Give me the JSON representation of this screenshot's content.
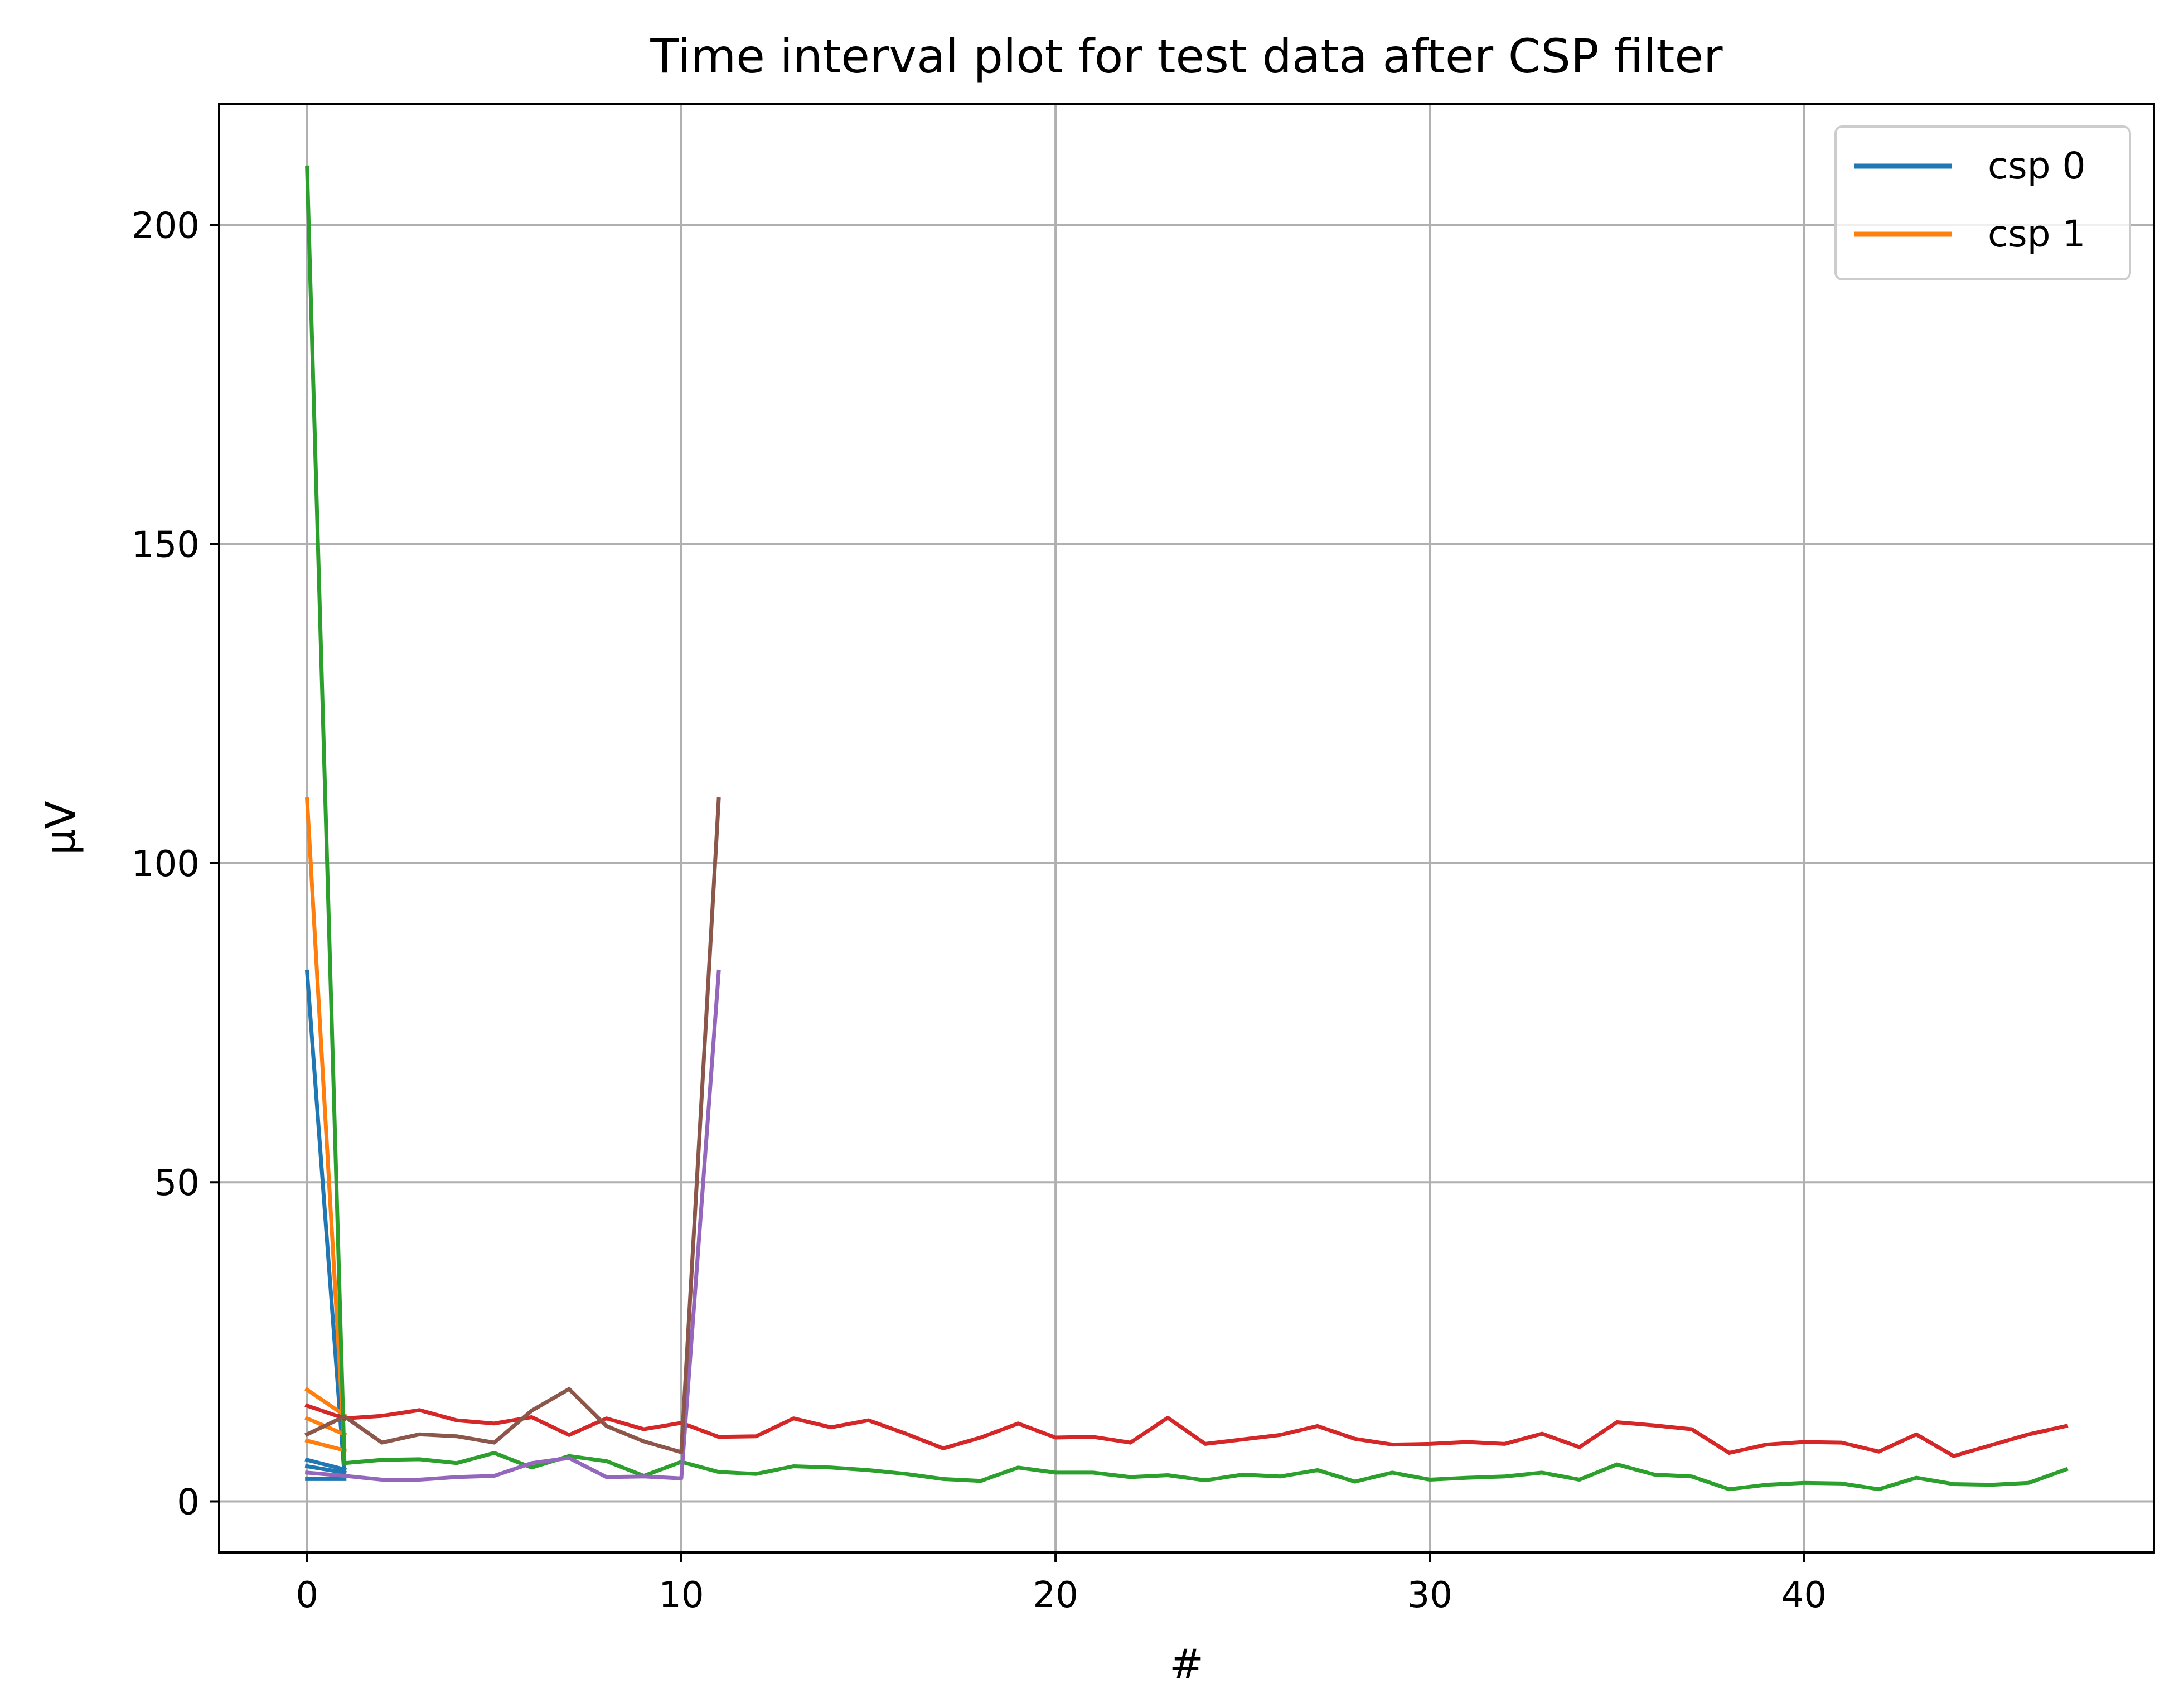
{
  "chart_data": {
    "type": "line",
    "title": "Time interval plot for test data after CSP filter",
    "xlabel": "#",
    "ylabel": "μV",
    "xlim": [
      -2.35,
      49.35
    ],
    "ylim": [
      -8.0,
      219.0
    ],
    "xticks": [
      0,
      10,
      20,
      30,
      40
    ],
    "yticks": [
      0,
      50,
      100,
      150,
      200
    ],
    "grid": true,
    "legend": {
      "placement": "top-right",
      "entries": [
        {
          "label": "csp 0",
          "color": "#1f77b4"
        },
        {
          "label": "csp 1",
          "color": "#ff7f0e"
        }
      ]
    },
    "series": [
      {
        "color": "#1f77b4",
        "x": [
          0,
          1
        ],
        "y": [
          83,
          4
        ]
      },
      {
        "color": "#1f77b4",
        "x": [
          0,
          1
        ],
        "y": [
          6.5,
          5
        ]
      },
      {
        "color": "#1f77b4",
        "x": [
          0,
          1
        ],
        "y": [
          3.5,
          3.5
        ]
      },
      {
        "color": "#1f77b4",
        "x": [
          0,
          1
        ],
        "y": [
          5.5,
          4.5
        ]
      },
      {
        "color": "#ff7f0e",
        "x": [
          0,
          1
        ],
        "y": [
          110,
          8
        ]
      },
      {
        "color": "#ff7f0e",
        "x": [
          0,
          1
        ],
        "y": [
          17.5,
          13.5
        ]
      },
      {
        "color": "#ff7f0e",
        "x": [
          0,
          1
        ],
        "y": [
          13,
          10.5
        ]
      },
      {
        "color": "#ff7f0e",
        "x": [
          0,
          1
        ],
        "y": [
          9.5,
          8
        ]
      },
      {
        "color": "#2ca02c",
        "x": [
          0,
          1
        ],
        "y": [
          209,
          6
        ]
      },
      {
        "color": "#2ca02c",
        "x": [
          1,
          2,
          3,
          4,
          5,
          6,
          7,
          8,
          9,
          10,
          11,
          12,
          13,
          14,
          15,
          16,
          17,
          18,
          19,
          20,
          21,
          22,
          23,
          24,
          25,
          26,
          27,
          28,
          29,
          30,
          31,
          32,
          33,
          34,
          35,
          36,
          37,
          38,
          39,
          40,
          41,
          42,
          43,
          44,
          45,
          46,
          47
        ],
        "y": [
          6,
          6.5,
          6.6,
          6,
          7.6,
          5.3,
          7.1,
          6.3,
          4,
          6.2,
          4.6,
          4.3,
          5.5,
          5.3,
          4.9,
          4.3,
          3.5,
          3.2,
          5.3,
          4.5,
          4.5,
          3.8,
          4.1,
          3.3,
          4.2,
          3.9,
          4.9,
          3.1,
          4.5,
          3.4,
          3.7,
          3.9,
          4.5,
          3.4,
          5.8,
          4.2,
          3.9,
          1.9,
          2.6,
          2.9,
          2.8,
          1.9,
          3.7,
          2.7,
          2.6,
          2.9,
          5
        ]
      },
      {
        "color": "#d62728",
        "x": [
          0,
          1
        ],
        "y": [
          15,
          13
        ]
      },
      {
        "color": "#d62728",
        "x": [
          1,
          2,
          3,
          4,
          5,
          6,
          7,
          8,
          9,
          10,
          11,
          12,
          13,
          14,
          15,
          16,
          17,
          18,
          19,
          20,
          21,
          22,
          23,
          24,
          25,
          26,
          27,
          28,
          29,
          30,
          31,
          32,
          33,
          34,
          35,
          36,
          37,
          38,
          39,
          40,
          41,
          42,
          43,
          44,
          45,
          46,
          47
        ],
        "y": [
          13,
          13.4,
          14.3,
          12.7,
          12.2,
          13.2,
          10.4,
          13,
          11.3,
          12.3,
          10.1,
          10.2,
          13,
          11.6,
          12.7,
          10.6,
          8.3,
          10,
          12.2,
          10,
          10.1,
          9.2,
          13.1,
          9,
          9.7,
          10.4,
          11.8,
          9.8,
          8.9,
          9,
          9.3,
          9,
          10.6,
          8.5,
          12.4,
          11.9,
          11.3,
          7.6,
          8.9,
          9.3,
          9.2,
          7.8,
          10.5,
          7.1,
          8.8,
          10.5,
          11.8
        ]
      },
      {
        "color": "#9467bd",
        "x": [
          0,
          1,
          2,
          3,
          4,
          5,
          6,
          7,
          8,
          9,
          10,
          11
        ],
        "y": [
          4.5,
          4,
          3.4,
          3.4,
          3.8,
          4,
          6,
          6.8,
          3.8,
          3.9,
          3.6,
          83
        ]
      },
      {
        "color": "#8c564b",
        "x": [
          0,
          1,
          2,
          3,
          4,
          5,
          6,
          7,
          8,
          9,
          10,
          11
        ],
        "y": [
          10.5,
          13.3,
          9.2,
          10.5,
          10.2,
          9.2,
          14.2,
          17.6,
          11.8,
          9.4,
          7.7,
          110
        ]
      }
    ]
  }
}
